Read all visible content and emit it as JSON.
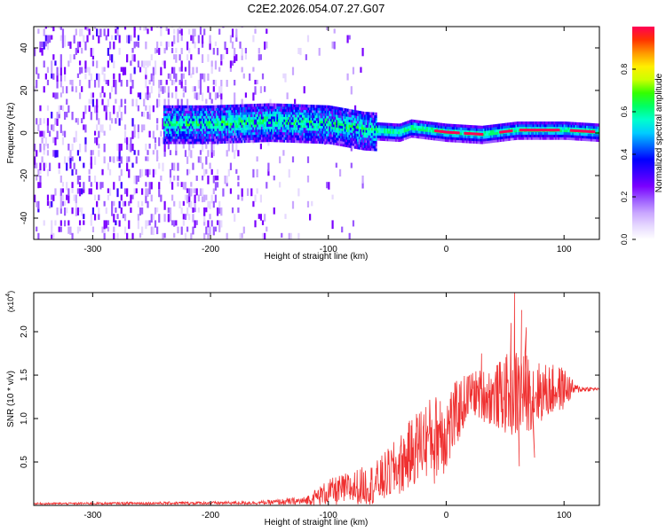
{
  "figure": {
    "title": "C2E2.2026.054.07.27.G07"
  },
  "chart_data": [
    {
      "type": "heatmap",
      "xlabel": "Height of straight line (km)",
      "ylabel": "Frequency (Hz)",
      "xlim": [
        -350,
        130
      ],
      "ylim": [
        -50,
        50
      ],
      "x_ticks": [
        -300,
        -200,
        -100,
        0,
        100
      ],
      "y_ticks": [
        -40,
        -20,
        0,
        20,
        40
      ],
      "colorbar": {
        "label": "Normalized spectral amplitude",
        "range": [
          0,
          1
        ],
        "ticks": [
          "0.0",
          "0.2",
          "0.4",
          "0.6",
          "0.8"
        ],
        "colors": [
          "#ffffff",
          "#e6d9ff",
          "#c9a6ff",
          "#9b59ff",
          "#7a00ff",
          "#3b00ff",
          "#0000ff",
          "#0066ff",
          "#00ccff",
          "#00ffcc",
          "#00ff66",
          "#33ff00",
          "#ccff00",
          "#ffee00",
          "#ff9900",
          "#ff3300",
          "#ff0055"
        ]
      },
      "ridge": [
        {
          "x": -230,
          "f": 4
        },
        {
          "x": -200,
          "f": 4
        },
        {
          "x": -150,
          "f": 5
        },
        {
          "x": -100,
          "f": 4
        },
        {
          "x": -70,
          "f": 1
        },
        {
          "x": -40,
          "f": 0
        },
        {
          "x": -30,
          "f": 2
        },
        {
          "x": 0,
          "f": 0
        },
        {
          "x": 30,
          "f": -1
        },
        {
          "x": 60,
          "f": 1
        },
        {
          "x": 100,
          "f": 1
        },
        {
          "x": 130,
          "f": 0
        }
      ],
      "peak_segments": [
        [
          -10,
          10
        ],
        [
          15,
          30
        ],
        [
          45,
          55
        ],
        [
          62,
          95
        ],
        [
          105,
          125
        ]
      ],
      "noise_region": [
        -350,
        -110
      ]
    },
    {
      "type": "line",
      "xlabel": "Height of straight line (km)",
      "ylabel": "SNR (10 * v/v)",
      "y_multiplier": "(x10",
      "y_multiplier_exp": "4",
      "y_multiplier_close": ")",
      "xlim": [
        -350,
        130
      ],
      "ylim": [
        0,
        2.45
      ],
      "x_ticks": [
        -300,
        -200,
        -100,
        0,
        100
      ],
      "y_ticks": [
        "0.5",
        "1.0",
        "1.5",
        "2.0"
      ],
      "line_color": "#ef3030",
      "envelope": [
        {
          "x": -350,
          "base": 0.02,
          "amp": 0.01
        },
        {
          "x": -160,
          "base": 0.03,
          "amp": 0.02
        },
        {
          "x": -120,
          "base": 0.05,
          "amp": 0.05
        },
        {
          "x": -100,
          "base": 0.15,
          "amp": 0.15
        },
        {
          "x": -60,
          "base": 0.25,
          "amp": 0.25
        },
        {
          "x": -40,
          "base": 0.45,
          "amp": 0.35
        },
        {
          "x": -20,
          "base": 0.75,
          "amp": 0.45
        },
        {
          "x": 0,
          "base": 0.85,
          "amp": 0.5
        },
        {
          "x": 20,
          "base": 1.3,
          "amp": 0.25
        },
        {
          "x": 40,
          "base": 1.25,
          "amp": 0.35
        },
        {
          "x": 60,
          "base": 1.3,
          "amp": 0.55
        },
        {
          "x": 80,
          "base": 1.3,
          "amp": 0.35
        },
        {
          "x": 100,
          "base": 1.35,
          "amp": 0.25
        },
        {
          "x": 110,
          "base": 1.34,
          "amp": 0.05
        },
        {
          "x": 130,
          "base": 1.34,
          "amp": 0.01
        }
      ],
      "spikes": [
        {
          "x": 58,
          "y": 2.45
        },
        {
          "x": 64,
          "y": 2.25
        },
        {
          "x": 55,
          "y": 2.1
        },
        {
          "x": 68,
          "y": 2.05
        },
        {
          "x": 62,
          "y": 0.45
        },
        {
          "x": 75,
          "y": 0.55
        },
        {
          "x": 30,
          "y": 1.75
        },
        {
          "x": -5,
          "y": 1.2
        },
        {
          "x": -10,
          "y": 0.25
        }
      ]
    }
  ]
}
